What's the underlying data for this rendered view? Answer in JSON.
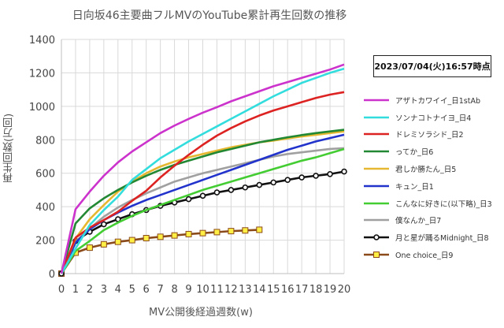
{
  "chart_data": {
    "type": "line",
    "title": "日向坂46主要曲フルMVのYouTube累計再生回数の推移",
    "xlabel": "MV公開後経過週数(w)",
    "ylabel": "再生回数(万回)",
    "xlim": [
      0,
      20
    ],
    "ylim": [
      0,
      1400
    ],
    "xticks": [
      "0",
      "1",
      "2",
      "3",
      "4",
      "5",
      "6",
      "7",
      "8",
      "9",
      "10",
      "11",
      "12",
      "13",
      "14",
      "15",
      "16",
      "17",
      "18",
      "19",
      "20"
    ],
    "yticks": [
      "0",
      "200",
      "400",
      "600",
      "800",
      "1000",
      "1200",
      "1400"
    ],
    "grid": true,
    "legend_position": "right",
    "annotation": "2023/07/04(火)16:57時点",
    "series": [
      {
        "name": "アザトカワイイ_日1stAb",
        "color": "#cc33cc",
        "marker": "none",
        "x": [
          0,
          1,
          2,
          3,
          4,
          5,
          6,
          7,
          8,
          9,
          10,
          11,
          12,
          13,
          14,
          15,
          16,
          17,
          18,
          19,
          20
        ],
        "y": [
          0,
          385,
          490,
          585,
          665,
          730,
          785,
          840,
          885,
          925,
          962,
          995,
          1030,
          1060,
          1090,
          1120,
          1145,
          1170,
          1195,
          1220,
          1250
        ]
      },
      {
        "name": "ソンナコトナイヨ_日4",
        "color": "#33dddd",
        "marker": "none",
        "x": [
          0,
          1,
          2,
          3,
          4,
          5,
          6,
          7,
          8,
          9,
          10,
          11,
          12,
          13,
          14,
          15,
          16,
          17,
          18,
          19,
          20
        ],
        "y": [
          0,
          150,
          290,
          380,
          460,
          560,
          625,
          690,
          740,
          790,
          835,
          880,
          925,
          970,
          1015,
          1060,
          1100,
          1140,
          1170,
          1200,
          1225
        ]
      },
      {
        "name": "ドレミソラシド_日2",
        "color": "#dd2222",
        "marker": "none",
        "x": [
          0,
          1,
          2,
          3,
          4,
          5,
          6,
          7,
          8,
          9,
          10,
          11,
          12,
          13,
          14,
          15,
          16,
          17,
          18,
          19,
          20
        ],
        "y": [
          0,
          215,
          275,
          320,
          370,
          435,
          495,
          575,
          645,
          710,
          770,
          825,
          870,
          910,
          945,
          975,
          1000,
          1025,
          1050,
          1070,
          1085
        ]
      },
      {
        "name": "ってか_日6",
        "color": "#228833",
        "marker": "none",
        "x": [
          0,
          1,
          2,
          3,
          4,
          5,
          6,
          7,
          8,
          9,
          10,
          11,
          12,
          13,
          14,
          15,
          16,
          17,
          18,
          19,
          20
        ],
        "y": [
          0,
          300,
          390,
          450,
          500,
          545,
          585,
          620,
          650,
          675,
          700,
          725,
          745,
          765,
          785,
          800,
          815,
          828,
          840,
          850,
          860
        ]
      },
      {
        "name": "君しか勝たん_日5",
        "color": "#e6b832",
        "marker": "none",
        "x": [
          0,
          1,
          2,
          3,
          4,
          5,
          6,
          7,
          8,
          9,
          10,
          11,
          12,
          13,
          14,
          15,
          16,
          17,
          18,
          19,
          20
        ],
        "y": [
          0,
          210,
          325,
          410,
          490,
          550,
          600,
          640,
          670,
          695,
          715,
          735,
          755,
          770,
          785,
          795,
          808,
          820,
          830,
          840,
          850
        ]
      },
      {
        "name": "キュン_日1",
        "color": "#2233cc",
        "marker": "none",
        "x": [
          0,
          1,
          2,
          3,
          4,
          5,
          6,
          7,
          8,
          9,
          10,
          11,
          12,
          13,
          14,
          15,
          16,
          17,
          18,
          19,
          20
        ],
        "y": [
          0,
          185,
          265,
          320,
          365,
          405,
          440,
          470,
          500,
          530,
          560,
          590,
          620,
          650,
          680,
          710,
          740,
          765,
          790,
          810,
          830
        ]
      },
      {
        "name": "こんなに好きに(以下略)_日3",
        "color": "#44cc33",
        "marker": "none",
        "x": [
          0,
          1,
          2,
          3,
          4,
          5,
          6,
          7,
          8,
          9,
          10,
          11,
          12,
          13,
          14,
          15,
          16,
          17,
          18,
          19,
          20
        ],
        "y": [
          0,
          135,
          195,
          260,
          305,
          345,
          380,
          410,
          440,
          470,
          500,
          525,
          550,
          575,
          600,
          625,
          650,
          675,
          695,
          720,
          745
        ]
      },
      {
        "name": "僕なんか_日7",
        "color": "#a0a0a0",
        "marker": "none",
        "x": [
          0,
          1,
          2,
          3,
          4,
          5,
          6,
          7,
          8,
          9,
          10,
          11,
          12,
          13,
          14,
          15,
          16,
          17,
          18,
          19,
          20
        ],
        "y": [
          0,
          190,
          270,
          340,
          395,
          440,
          480,
          515,
          550,
          575,
          600,
          620,
          640,
          660,
          680,
          700,
          715,
          725,
          735,
          745,
          750
        ]
      },
      {
        "name": "月と星が踊るMidnight_日8",
        "color": "#111111",
        "marker": "circle",
        "x": [
          0,
          1,
          2,
          3,
          4,
          5,
          6,
          7,
          8,
          9,
          10,
          11,
          12,
          13,
          14,
          15,
          16,
          17,
          18,
          19,
          20
        ],
        "y": [
          0,
          195,
          250,
          295,
          325,
          355,
          380,
          405,
          425,
          445,
          465,
          485,
          500,
          515,
          530,
          545,
          560,
          575,
          585,
          595,
          610
        ]
      },
      {
        "name": "One choice_日9",
        "color": "#8b4a1a",
        "marker": "square",
        "marker_fill": "#ffee44",
        "x": [
          0,
          1,
          2,
          3,
          4,
          5,
          6,
          7,
          8,
          9,
          10,
          11,
          12,
          13,
          14
        ],
        "y": [
          0,
          125,
          155,
          175,
          190,
          200,
          212,
          220,
          228,
          236,
          242,
          248,
          254,
          258,
          262
        ]
      }
    ]
  }
}
